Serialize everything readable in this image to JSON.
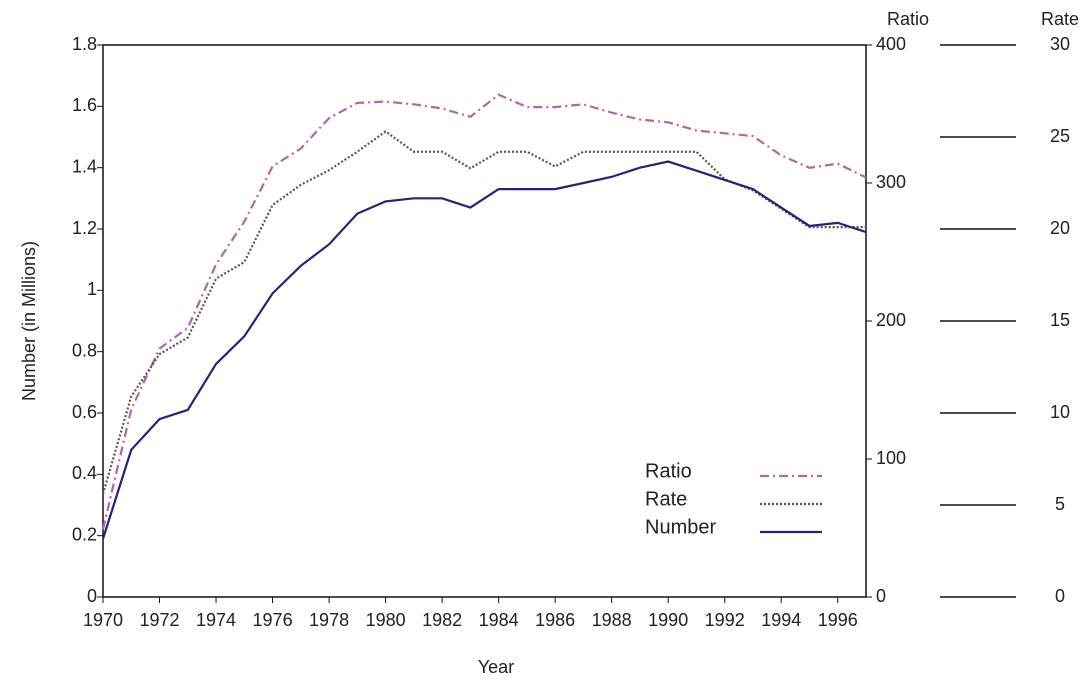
{
  "chart_data": {
    "type": "line",
    "x_label": "Year",
    "y_label": "Number (in Millions)",
    "y2_label": "Ratio",
    "y3_label": "Rate",
    "x": [
      1970,
      1971,
      1972,
      1973,
      1974,
      1975,
      1976,
      1977,
      1978,
      1979,
      1980,
      1981,
      1982,
      1983,
      1984,
      1985,
      1986,
      1987,
      1988,
      1989,
      1990,
      1991,
      1992,
      1993,
      1994,
      1995,
      1996,
      1997
    ],
    "xlim": [
      1970,
      1997
    ],
    "xticks": [
      1970,
      1972,
      1974,
      1976,
      1978,
      1980,
      1982,
      1984,
      1986,
      1988,
      1990,
      1992,
      1994,
      1996
    ],
    "ylim": [
      0,
      1.8
    ],
    "yticks": [
      0,
      0.2,
      0.4,
      0.6,
      0.8,
      1,
      1.2,
      1.4,
      1.6,
      1.8
    ],
    "y2lim": [
      0,
      400
    ],
    "y2ticks": [
      0,
      100,
      200,
      300,
      400
    ],
    "y3lim": [
      0,
      30
    ],
    "y3ticks": [
      0,
      5,
      10,
      15,
      20,
      25,
      30
    ],
    "legend": "lower right",
    "series": [
      {
        "name": "Ratio",
        "color": "#b066a8",
        "style": "dashdot",
        "axis": "y2",
        "values": [
          49,
          136,
          180,
          195,
          241,
          272,
          312,
          325,
          347,
          358,
          359,
          357,
          354,
          348,
          364,
          355,
          355,
          357,
          351,
          346,
          344,
          338,
          336,
          334,
          320,
          311,
          314,
          304
        ]
      },
      {
        "name": "Rate",
        "color": "#555555",
        "style": "dotted",
        "axis": "y3",
        "values": [
          5.6,
          10.9,
          13.2,
          14.1,
          17.3,
          18.2,
          21.3,
          22.4,
          23.2,
          24.2,
          25.3,
          24.2,
          24.2,
          23.3,
          24.2,
          24.2,
          23.4,
          24.2,
          24.2,
          24.2,
          24.2,
          24.2,
          22.7,
          22.1,
          21.1,
          20.1,
          20.1,
          20.1
        ]
      },
      {
        "name": "Number",
        "color": "#2a2270",
        "style": "solid",
        "axis": "y",
        "values": [
          0.19,
          0.48,
          0.58,
          0.61,
          0.76,
          0.85,
          0.99,
          1.08,
          1.15,
          1.25,
          1.29,
          1.3,
          1.3,
          1.27,
          1.33,
          1.33,
          1.33,
          1.35,
          1.37,
          1.4,
          1.42,
          1.39,
          1.36,
          1.33,
          1.27,
          1.21,
          1.22,
          1.19
        ]
      }
    ]
  }
}
